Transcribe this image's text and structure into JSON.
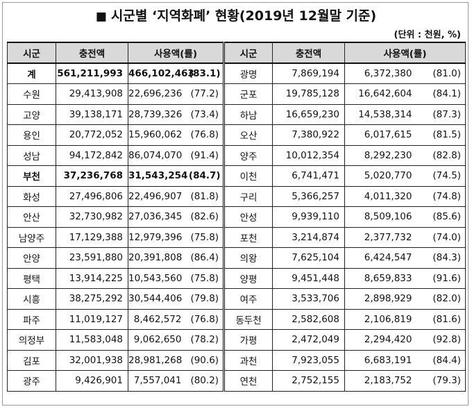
{
  "title": "■ 시군별 ‘지역화폐’ 현황(2019년 12월말 기준)",
  "title_square": "■",
  "title_text": "시군별 ‘지역화폐’ 현황(2019년 12월말 기준)",
  "unit": "(단위 : 천원, %)",
  "headers": {
    "region": "시군",
    "charge": "충전액",
    "usage": "사용액(률)"
  },
  "left_rows": [
    {
      "name": "계",
      "charge": "561,211,993",
      "usage": "466,102,463",
      "rate": "(83.1)",
      "bold": true
    },
    {
      "name": "수원",
      "charge": "29,413,908",
      "usage": "22,696,236",
      "rate": "(77.2)"
    },
    {
      "name": "고양",
      "charge": "39,138,171",
      "usage": "28,739,326",
      "rate": "(73.4)"
    },
    {
      "name": "용인",
      "charge": "20,772,052",
      "usage": "15,960,062",
      "rate": "(76.8)"
    },
    {
      "name": "성남",
      "charge": "94,172,842",
      "usage": "86,074,070",
      "rate": "(91.4)"
    },
    {
      "name": "부천",
      "charge": "37,236,768",
      "usage": "31,543,254",
      "rate": "(84.7)",
      "bold": true
    },
    {
      "name": "화성",
      "charge": "27,496,806",
      "usage": "22,496,907",
      "rate": "(81.8)"
    },
    {
      "name": "안산",
      "charge": "32,730,982",
      "usage": "27,036,345",
      "rate": "(82.6)"
    },
    {
      "name": "남양주",
      "charge": "17,129,388",
      "usage": "12,979,396",
      "rate": "(75.8)"
    },
    {
      "name": "안양",
      "charge": "23,591,880",
      "usage": "20,391,808",
      "rate": "(86.4)"
    },
    {
      "name": "평택",
      "charge": "13,914,225",
      "usage": "10,543,560",
      "rate": "(75.8)"
    },
    {
      "name": "시흥",
      "charge": "38,275,292",
      "usage": "30,544,406",
      "rate": "(79.8)"
    },
    {
      "name": "파주",
      "charge": "11,019,127",
      "usage": "8,462,572",
      "rate": "(76.8)"
    },
    {
      "name": "의정부",
      "charge": "11,583,048",
      "usage": "9,062,650",
      "rate": "(78.2)"
    },
    {
      "name": "김포",
      "charge": "32,001,938",
      "usage": "28,981,268",
      "rate": "(90.6)"
    },
    {
      "name": "광주",
      "charge": "9,426,901",
      "usage": "7,557,041",
      "rate": "(80.2)"
    }
  ],
  "right_rows": [
    {
      "name": "광명",
      "charge": "7,869,194",
      "usage": "6,372,380",
      "rate": "(81.0)"
    },
    {
      "name": "군포",
      "charge": "19,785,128",
      "usage": "16,642,604",
      "rate": "(84.1)"
    },
    {
      "name": "하남",
      "charge": "16,659,230",
      "usage": "14,538,314",
      "rate": "(87.3)"
    },
    {
      "name": "오산",
      "charge": "7,380,922",
      "usage": "6,017,615",
      "rate": "(81.5)"
    },
    {
      "name": "양주",
      "charge": "10,012,354",
      "usage": "8,292,230",
      "rate": "(82.8)"
    },
    {
      "name": "이천",
      "charge": "6,741,471",
      "usage": "5,020,770",
      "rate": "(74.5)"
    },
    {
      "name": "구리",
      "charge": "5,366,257",
      "usage": "4,011,320",
      "rate": "(74.8)"
    },
    {
      "name": "안성",
      "charge": "9,939,110",
      "usage": "8,509,106",
      "rate": "(85.6)"
    },
    {
      "name": "포천",
      "charge": "3,214,874",
      "usage": "2,377,732",
      "rate": "(74.0)"
    },
    {
      "name": "의왕",
      "charge": "7,625,104",
      "usage": "6,424,547",
      "rate": "(84.3)"
    },
    {
      "name": "양평",
      "charge": "9,451,448",
      "usage": "8,659,833",
      "rate": "(91.6)"
    },
    {
      "name": "여주",
      "charge": "3,533,706",
      "usage": "2,898,929",
      "rate": "(82.0)"
    },
    {
      "name": "동두천",
      "charge": "2,582,608",
      "usage": "2,106,819",
      "rate": "(81.6)"
    },
    {
      "name": "가평",
      "charge": "2,472,049",
      "usage": "2,294,420",
      "rate": "(92.8)"
    },
    {
      "name": "과천",
      "charge": "7,923,055",
      "usage": "6,683,191",
      "rate": "(84.4)"
    },
    {
      "name": "연천",
      "charge": "2,752,155",
      "usage": "2,183,752",
      "rate": "(79.3)"
    }
  ]
}
